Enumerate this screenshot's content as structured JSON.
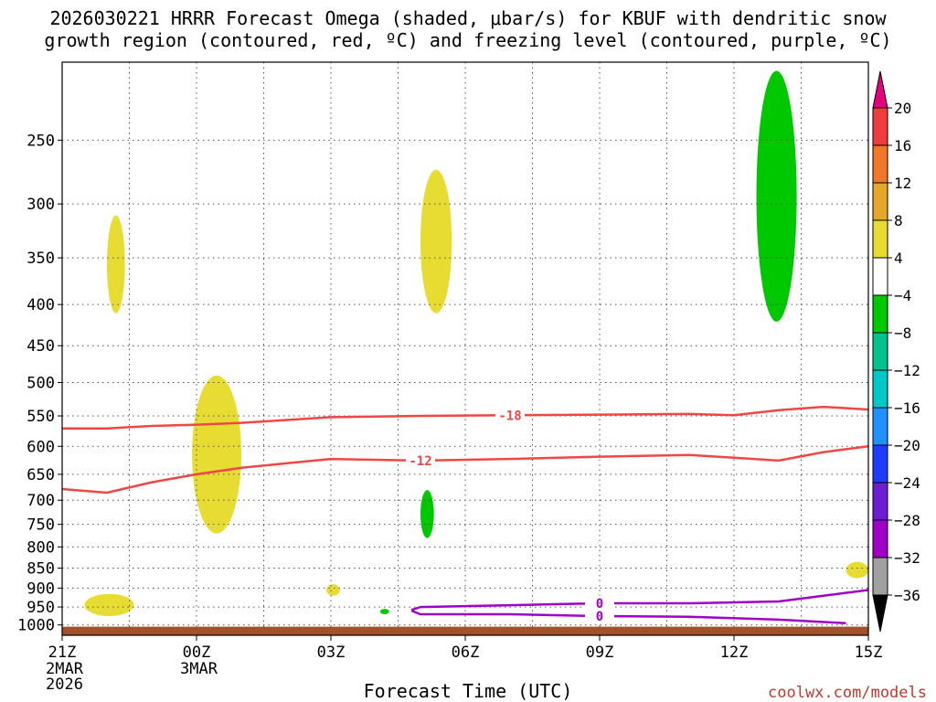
{
  "title_line1": "2026030221 HRRR Forecast Omega (shaded, μbar/s) for KBUF with dendritic snow",
  "title_line2": "growth region (contoured, red, ºC) and freezing level (contoured, purple, ºC)",
  "credit": "coolwx.com/models",
  "chart_data": {
    "type": "contour",
    "xlabel": "Forecast Time (UTC)",
    "ylabel": "",
    "x_ticks": [
      "21Z",
      "00Z",
      "03Z",
      "06Z",
      "09Z",
      "12Z",
      "15Z"
    ],
    "x_tick_sublabels": [
      [
        "2MAR",
        "2026"
      ],
      [
        "3MAR"
      ],
      [],
      [],
      [],
      [],
      []
    ],
    "xlim_hours": [
      0,
      18
    ],
    "y_ticks": [
      250,
      300,
      350,
      400,
      450,
      500,
      550,
      600,
      650,
      700,
      750,
      800,
      850,
      900,
      950,
      1000
    ],
    "ylim_hPa": [
      1030,
      200
    ],
    "y_scale": "log",
    "grid": true,
    "colorbar": {
      "ticks": [
        "20",
        "16",
        "12",
        "8",
        "4",
        "−4",
        "−8",
        "−12",
        "−16",
        "−20",
        "−24",
        "−28",
        "−32",
        "−36"
      ],
      "colors": [
        "#e6007e",
        "#f03c3c",
        "#f07828",
        "#e6a82a",
        "#e6dc32",
        "#ffffff",
        "#00c800",
        "#00c38c",
        "#00c8c8",
        "#1e90ff",
        "#1e3cff",
        "#6e1ed2",
        "#a000c8",
        "#a0a0a0",
        "#000000"
      ]
    },
    "omega_regions": [
      {
        "value_range": "4 to 8",
        "color": "#e6dc32",
        "hour_range": [
          1.0,
          1.4
        ],
        "pressure_range": [
          310,
          410
        ]
      },
      {
        "value_range": "4 to 8",
        "color": "#e6dc32",
        "hour_range": [
          0.5,
          1.6
        ],
        "pressure_range": [
          915,
          975
        ]
      },
      {
        "value_range": "4 to 8",
        "color": "#e6dc32",
        "hour_range": [
          2.9,
          4.0
        ],
        "pressure_range": [
          490,
          770
        ]
      },
      {
        "value_range": "4 to 8",
        "color": "#e6dc32",
        "hour_range": [
          5.9,
          6.2
        ],
        "pressure_range": [
          890,
          920
        ]
      },
      {
        "value_range": "4 to 8",
        "color": "#e6dc32",
        "hour_range": [
          8.0,
          8.7
        ],
        "pressure_range": [
          272,
          410
        ]
      },
      {
        "value_range": "4 to 8",
        "color": "#e6dc32",
        "hour_range": [
          17.5,
          18.0
        ],
        "pressure_range": [
          835,
          875
        ]
      },
      {
        "value_range": "-8 to -4",
        "color": "#00c800",
        "hour_range": [
          8.0,
          8.3
        ],
        "pressure_range": [
          680,
          780
        ]
      },
      {
        "value_range": "-8 to -4",
        "color": "#00c800",
        "hour_range": [
          7.1,
          7.3
        ],
        "pressure_range": [
          955,
          970
        ]
      },
      {
        "value_range": "-8 to -4",
        "color": "#00c800",
        "hour_range": [
          15.5,
          16.4
        ],
        "pressure_range": [
          205,
          420
        ]
      }
    ],
    "contours": [
      {
        "label": "-18",
        "color": "#f04646",
        "hours": [
          0,
          1,
          2,
          3,
          4,
          6,
          8,
          10,
          12,
          14,
          15,
          16,
          17,
          18
        ],
        "pressure": [
          570,
          570,
          566,
          564,
          561,
          552,
          550,
          549,
          548,
          547,
          549,
          541,
          536,
          540
        ]
      },
      {
        "label": "-12",
        "color": "#f04646",
        "hours": [
          0,
          1,
          2,
          3,
          4,
          5,
          6,
          8,
          10,
          12,
          14,
          15,
          16,
          17,
          18
        ],
        "pressure": [
          678,
          685,
          665,
          650,
          638,
          630,
          622,
          625,
          622,
          618,
          615,
          620,
          625,
          610,
          600
        ]
      },
      {
        "label": "0",
        "color": "#a000c8",
        "hours": [
          7.8,
          8,
          10,
          12,
          14,
          16,
          18
        ],
        "pressure": [
          958,
          950,
          945,
          940,
          940,
          935,
          905
        ]
      },
      {
        "label": "0",
        "color": "#a000c8",
        "hours": [
          7.8,
          8,
          10,
          12,
          14,
          16,
          17.5
        ],
        "pressure": [
          960,
          970,
          970,
          975,
          977,
          985,
          995
        ]
      }
    ],
    "terrain": {
      "label": "ground",
      "color": "#a0522d",
      "pressure_top": 1005
    }
  }
}
